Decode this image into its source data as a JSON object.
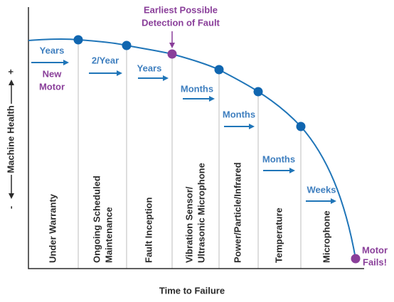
{
  "y_axis": {
    "label": "Machine Health",
    "plus": "+",
    "minus": "-"
  },
  "x_axis": {
    "label": "Time to Failure"
  },
  "stages": [
    {
      "label": [
        "Under Warranty"
      ],
      "interval": "Years"
    },
    {
      "label": [
        "Ongoing Scheduled",
        "Maintenance"
      ],
      "interval": "2/Year"
    },
    {
      "label": [
        "Fault Inception"
      ],
      "interval": "Years"
    },
    {
      "label": [
        "Vibration Sensor/",
        "Ultrasonic Microphone"
      ],
      "interval": "Months"
    },
    {
      "label": [
        "Power/Particle/Infrared"
      ],
      "interval": "Months"
    },
    {
      "label": [
        "Temperature"
      ],
      "interval": "Months"
    },
    {
      "label": [
        "Microphone"
      ],
      "interval": "Weeks"
    }
  ],
  "annotations": {
    "start": [
      "New",
      "Motor"
    ],
    "detection": [
      "Earliest Possible",
      "Detection of Fault"
    ],
    "end": [
      "Motor",
      "Fails!"
    ]
  }
}
